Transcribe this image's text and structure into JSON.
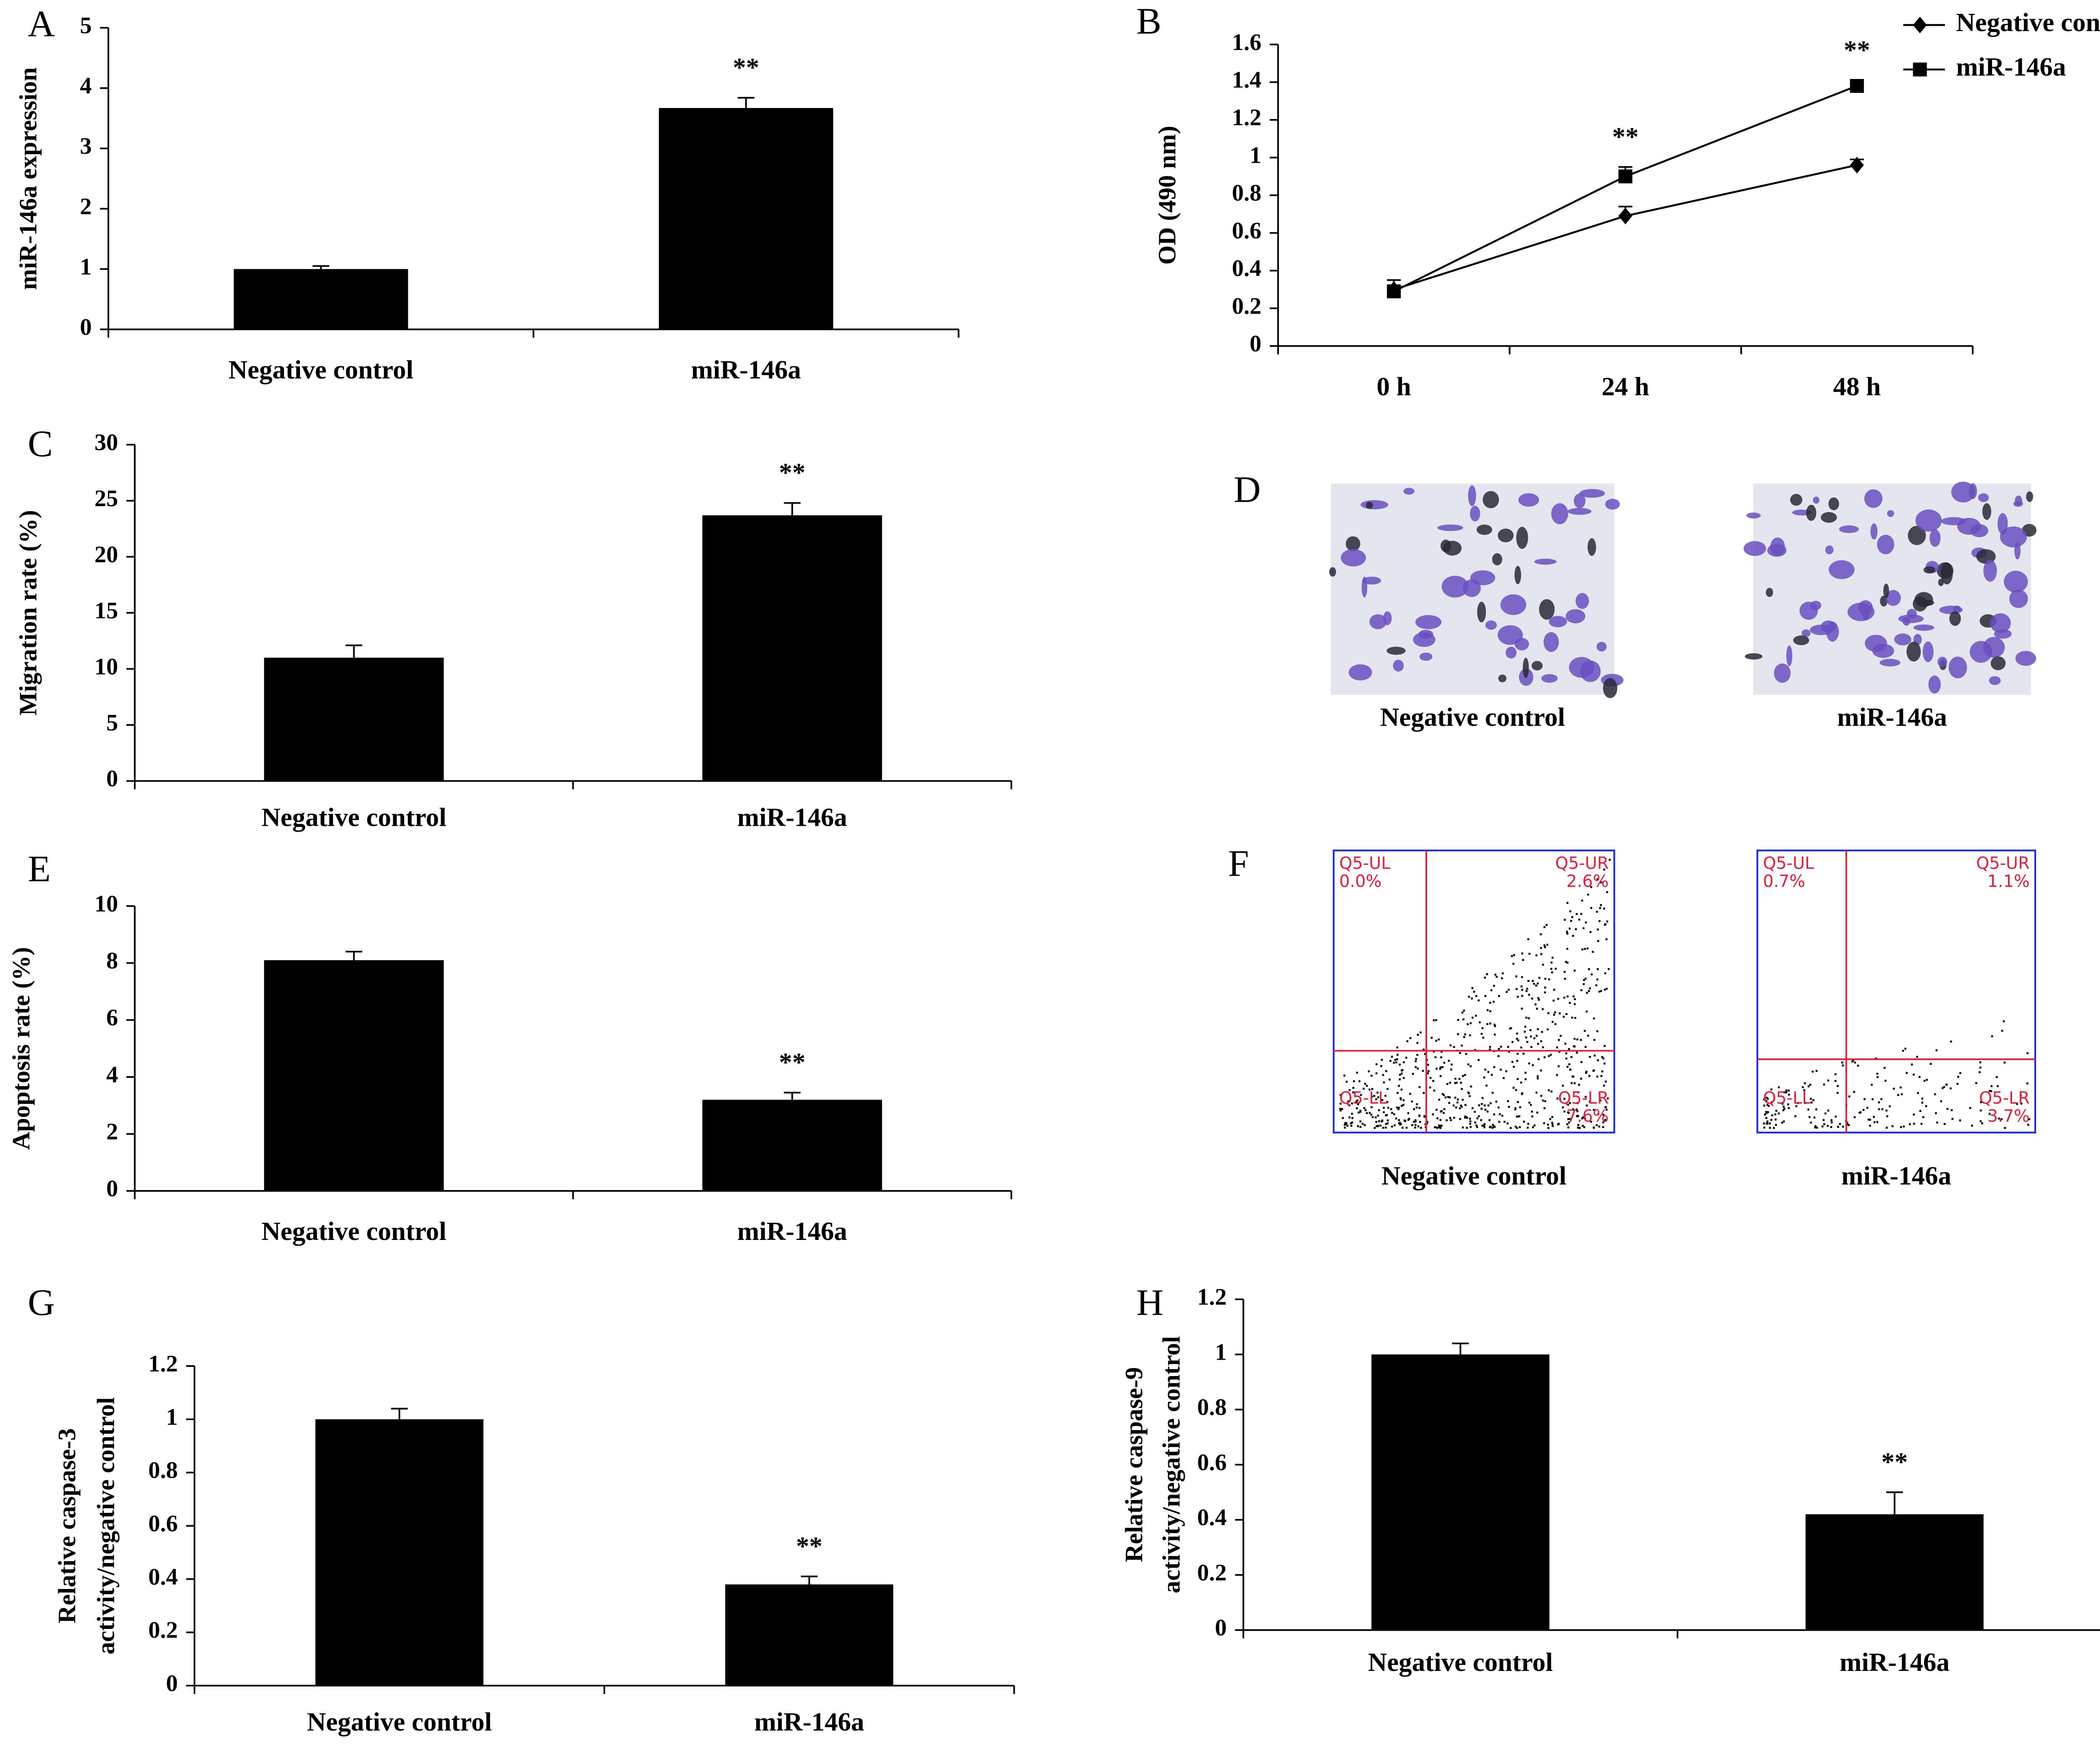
{
  "chart_data": [
    {
      "type": "bar",
      "panel": "A",
      "ylabel": [
        "miR-146a expression"
      ],
      "categories": [
        "Negative control",
        "miR-146a"
      ],
      "values": [
        1.0,
        3.67
      ],
      "errors": [
        0.05,
        0.17
      ],
      "color": "#000000",
      "ylim": [
        0,
        5
      ],
      "yticks": [
        0,
        1,
        2,
        3,
        4,
        5
      ],
      "annotations": [
        {
          "category": "miR-146a",
          "text": "**"
        }
      ]
    },
    {
      "type": "line",
      "panel": "B",
      "ylabel": [
        "OD (490 nm)"
      ],
      "categories": [
        "0 h",
        "24 h",
        "48 h"
      ],
      "series": [
        {
          "name": "Negative control",
          "color": "#000000",
          "marker": "diamond",
          "values": [
            0.3,
            0.69,
            0.96
          ],
          "errors": [
            0.05,
            0.05,
            0.03
          ]
        },
        {
          "name": "miR-146a",
          "color": "#000000",
          "marker": "square",
          "values": [
            0.29,
            0.9,
            1.38
          ],
          "errors": [
            0.03,
            0.05,
            0.03
          ]
        }
      ],
      "ylim": [
        0,
        1.6
      ],
      "yticks": [
        0,
        0.2,
        0.4,
        0.6,
        0.8,
        1,
        1.2,
        1.4,
        1.6
      ],
      "annotations": [
        {
          "category": "24 h",
          "text": "**"
        },
        {
          "category": "48 h",
          "text": "**"
        }
      ],
      "legend": "top-right"
    },
    {
      "type": "bar",
      "panel": "C",
      "ylabel": [
        "Migration rate (%)"
      ],
      "categories": [
        "Negative control",
        "miR-146a"
      ],
      "values": [
        11.0,
        23.7
      ],
      "errors": [
        1.1,
        1.1
      ],
      "color": "#000000",
      "ylim": [
        0,
        30
      ],
      "yticks": [
        0,
        5,
        10,
        15,
        20,
        25,
        30
      ],
      "annotations": [
        {
          "category": "miR-146a",
          "text": "**"
        }
      ]
    },
    {
      "type": "bar",
      "panel": "E",
      "ylabel": [
        "Apoptosis rate (%)"
      ],
      "categories": [
        "Negative control",
        "miR-146a"
      ],
      "values": [
        8.1,
        3.2
      ],
      "errors": [
        0.3,
        0.25
      ],
      "color": "#000000",
      "ylim": [
        0,
        10
      ],
      "yticks": [
        0,
        2,
        4,
        6,
        8,
        10
      ],
      "annotations": [
        {
          "category": "miR-146a",
          "text": "**"
        }
      ]
    },
    {
      "type": "bar",
      "panel": "G",
      "ylabel": [
        "Relative caspase-3",
        "activity/negative control"
      ],
      "categories": [
        "Negative control",
        "miR-146a"
      ],
      "values": [
        1.0,
        0.38
      ],
      "errors": [
        0.04,
        0.03
      ],
      "color": "#000000",
      "ylim": [
        0,
        1.2
      ],
      "yticks": [
        0,
        0.2,
        0.4,
        0.6,
        0.8,
        1,
        1.2
      ],
      "annotations": [
        {
          "category": "miR-146a",
          "text": "**"
        }
      ]
    },
    {
      "type": "bar",
      "panel": "H",
      "ylabel": [
        "Relative caspase-9",
        "activity/negative control"
      ],
      "categories": [
        "Negative control",
        "miR-146a"
      ],
      "values": [
        1.0,
        0.42
      ],
      "errors": [
        0.04,
        0.08
      ],
      "color": "#000000",
      "ylim": [
        0,
        1.2
      ],
      "yticks": [
        0,
        0.2,
        0.4,
        0.6,
        0.8,
        1,
        1.2
      ],
      "annotations": [
        {
          "category": "miR-146a",
          "text": "**"
        }
      ]
    }
  ],
  "micrographs": {
    "panel": "D",
    "captions": [
      "Negative control",
      "miR-146a"
    ]
  },
  "flow_cytometry": {
    "panel": "F",
    "plots": [
      {
        "caption": "Negative control",
        "quadrants": [
          {
            "name": "Q5-UL",
            "percent": "0.0%"
          },
          {
            "name": "Q5-UR",
            "percent": "2.6%"
          },
          {
            "name": "Q5-LL"
          },
          {
            "name": "Q5-LR",
            "percent": "7.6%"
          }
        ]
      },
      {
        "caption": "miR-146a",
        "quadrants": [
          {
            "name": "Q5-UL",
            "percent": "0.7%"
          },
          {
            "name": "Q5-UR",
            "percent": "1.1%"
          },
          {
            "name": "Q5-LL"
          },
          {
            "name": "Q5-LR",
            "percent": "3.7%"
          }
        ]
      }
    ]
  }
}
